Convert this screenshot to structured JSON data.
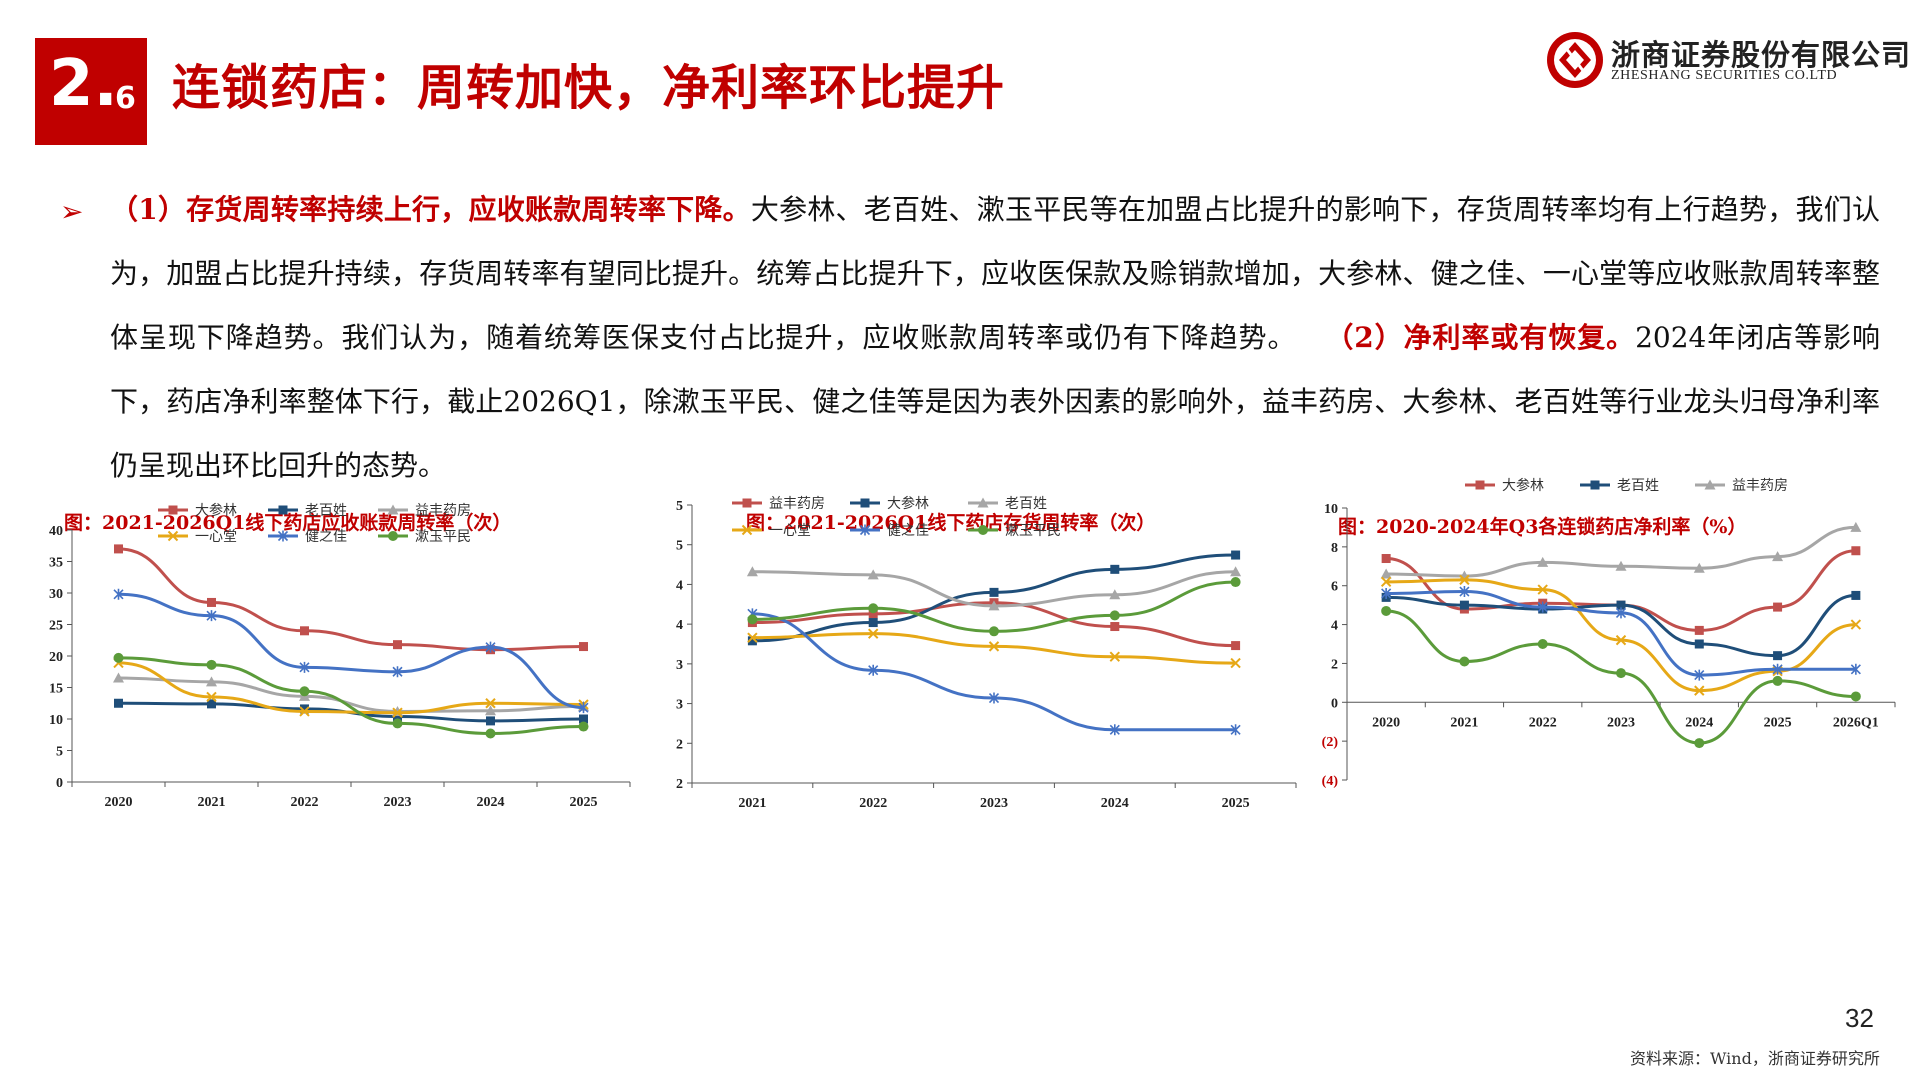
{
  "header": {
    "section_major": "2.",
    "section_minor": "6",
    "title": "连锁药店：周转加快，净利率环比提升",
    "logo_cn": "浙商证券股份有限公司",
    "logo_en": "ZHESHANG SECURITIES CO.LTD",
    "brand_color": "#c00000"
  },
  "body": {
    "bullet_glyph": "➢",
    "hl1": "（1）存货周转率持续上行，应收账款周转率下降。",
    "text1": "大参林、老百姓、漱玉平民等在加盟占比提升的影响下，存货周转率均有上行趋势，我们认为，加盟占比提升持续，存货周转率有望同比提升。统筹占比提升下，应收医保款及赊销款增加，大参林、健之佳、一心堂等应收账款周转率整体呈现下降趋势。我们认为，随着统筹医保支付占比提升，应收账款周转率或仍有下降趋势。",
    "hl2": "（2）净利率或有恢复。",
    "text2": "2024年闭店等影响下，药店净利率整体下行，截止2026Q1，除漱玉平民、健之佳等是因为表外因素的影响外，益丰药房、大参林、老百姓等行业龙头归母净利率仍呈现出环比回升的态势。"
  },
  "charts": {
    "c1_title": "图：2021-2026Q1线下药店应收账款周转率（次）",
    "c2_title": "图：2021-2026Q1线下药店存货周转率（次）",
    "c3_title": "图：2020-2024年Q3各连锁药店净利率（%）"
  },
  "footer": {
    "page_number": "32",
    "source": "资料来源：Wind，浙商证券研究所"
  },
  "chart_data": [
    {
      "type": "line",
      "title": "图：2021-2026Q1线下药店应收账款周转率（次）",
      "categories": [
        "2020",
        "2021",
        "2022",
        "2023",
        "2024",
        "2025"
      ],
      "ylim": [
        0,
        40
      ],
      "yticks": [
        "0",
        "5",
        "10",
        "15",
        "20",
        "25",
        "30",
        "35",
        "40"
      ],
      "ytick_values": [
        0,
        5,
        10,
        15,
        20,
        25,
        30,
        35,
        40
      ],
      "legend_position": "top",
      "series": [
        {
          "name": "大参林",
          "color": "#c0504d",
          "marker": "square",
          "values": [
            37,
            28.5,
            24,
            21.8,
            21,
            21.5
          ]
        },
        {
          "name": "老百姓",
          "color": "#1f4e79",
          "marker": "square",
          "values": [
            12.5,
            12.4,
            11.6,
            10.4,
            9.7,
            10
          ]
        },
        {
          "name": "益丰药房",
          "color": "#a6a6a6",
          "marker": "triangle",
          "values": [
            16.5,
            15.9,
            13.6,
            11.2,
            11.3,
            12
          ]
        },
        {
          "name": "一心堂",
          "color": "#e6a817",
          "marker": "x",
          "values": [
            18.9,
            13.5,
            11.2,
            11,
            12.5,
            12.3
          ]
        },
        {
          "name": "健之佳",
          "color": "#4472c4",
          "marker": "star",
          "values": [
            29.8,
            26.4,
            18.2,
            17.5,
            21.4,
            11.8
          ]
        },
        {
          "name": "漱玉平民",
          "color": "#5b9b3a",
          "marker": "circle",
          "values": [
            19.7,
            18.6,
            14.4,
            9.3,
            7.7,
            8.8
          ]
        }
      ]
    },
    {
      "type": "line",
      "title": "图：2021-2026Q1线下药店存货周转率（次）",
      "categories": [
        "2021",
        "2022",
        "2023",
        "2024",
        "2025"
      ],
      "ylim": [
        2,
        5
      ],
      "yticks": [
        "2",
        "2",
        "3",
        "3",
        "4",
        "4",
        "5",
        "5"
      ],
      "ytick_values": [
        1.5,
        2,
        2.5,
        3,
        3.5,
        4,
        4.5,
        5
      ],
      "legend_position": "top",
      "series": [
        {
          "name": "益丰药房",
          "color": "#c0504d",
          "marker": "square",
          "values": [
            3.52,
            3.63,
            3.77,
            3.47,
            3.23
          ]
        },
        {
          "name": "大参林",
          "color": "#1f4e79",
          "marker": "square",
          "values": [
            3.29,
            3.52,
            3.9,
            4.19,
            4.37
          ]
        },
        {
          "name": "老百姓",
          "color": "#a6a6a6",
          "marker": "triangle",
          "values": [
            4.16,
            4.12,
            3.73,
            3.87,
            4.16
          ]
        },
        {
          "name": "一心堂",
          "color": "#e6a817",
          "marker": "x",
          "values": [
            3.33,
            3.38,
            3.22,
            3.09,
            3.01
          ]
        },
        {
          "name": "健之佳",
          "color": "#4472c4",
          "marker": "star",
          "values": [
            3.63,
            2.92,
            2.57,
            2.17,
            2.17
          ]
        },
        {
          "name": "漱玉平民",
          "color": "#5b9b3a",
          "marker": "circle",
          "values": [
            3.56,
            3.7,
            3.41,
            3.61,
            4.03
          ]
        }
      ]
    },
    {
      "type": "line",
      "title": "图：2020-2024年Q3各连锁药店净利率（%）",
      "categories": [
        "2020",
        "2021",
        "2022",
        "2023",
        "2024",
        "2025",
        "2026Q1"
      ],
      "ylim": [
        -4,
        10
      ],
      "yticks": [
        "(4)",
        "(2)",
        "0",
        "2",
        "4",
        "6",
        "8",
        "10"
      ],
      "ytick_values": [
        -4,
        -2,
        0,
        2,
        4,
        6,
        8,
        10
      ],
      "legend_position": "top",
      "series": [
        {
          "name": "大参林",
          "color": "#c0504d",
          "marker": "square",
          "values": [
            7.4,
            4.8,
            5.1,
            5,
            3.7,
            4.9,
            7.8
          ]
        },
        {
          "name": "老百姓",
          "color": "#1f4e79",
          "marker": "square",
          "values": [
            5.4,
            5,
            4.8,
            5,
            3,
            2.4,
            5.5
          ]
        },
        {
          "name": "益丰药房",
          "color": "#a6a6a6",
          "marker": "triangle",
          "values": [
            6.6,
            6.5,
            7.2,
            7,
            6.9,
            7.5,
            9
          ]
        },
        {
          "name": "",
          "color": "#e6a817",
          "marker": "x",
          "values": [
            6.2,
            6.3,
            5.8,
            3.2,
            0.6,
            1.6,
            4
          ]
        },
        {
          "name": "",
          "color": "#4472c4",
          "marker": "star",
          "values": [
            5.6,
            5.7,
            4.9,
            4.6,
            1.4,
            1.7,
            1.7
          ]
        },
        {
          "name": "",
          "color": "#5b9b3a",
          "marker": "circle",
          "values": [
            4.7,
            2.1,
            3,
            1.5,
            -2.1,
            1.1,
            0.3
          ]
        }
      ]
    }
  ]
}
